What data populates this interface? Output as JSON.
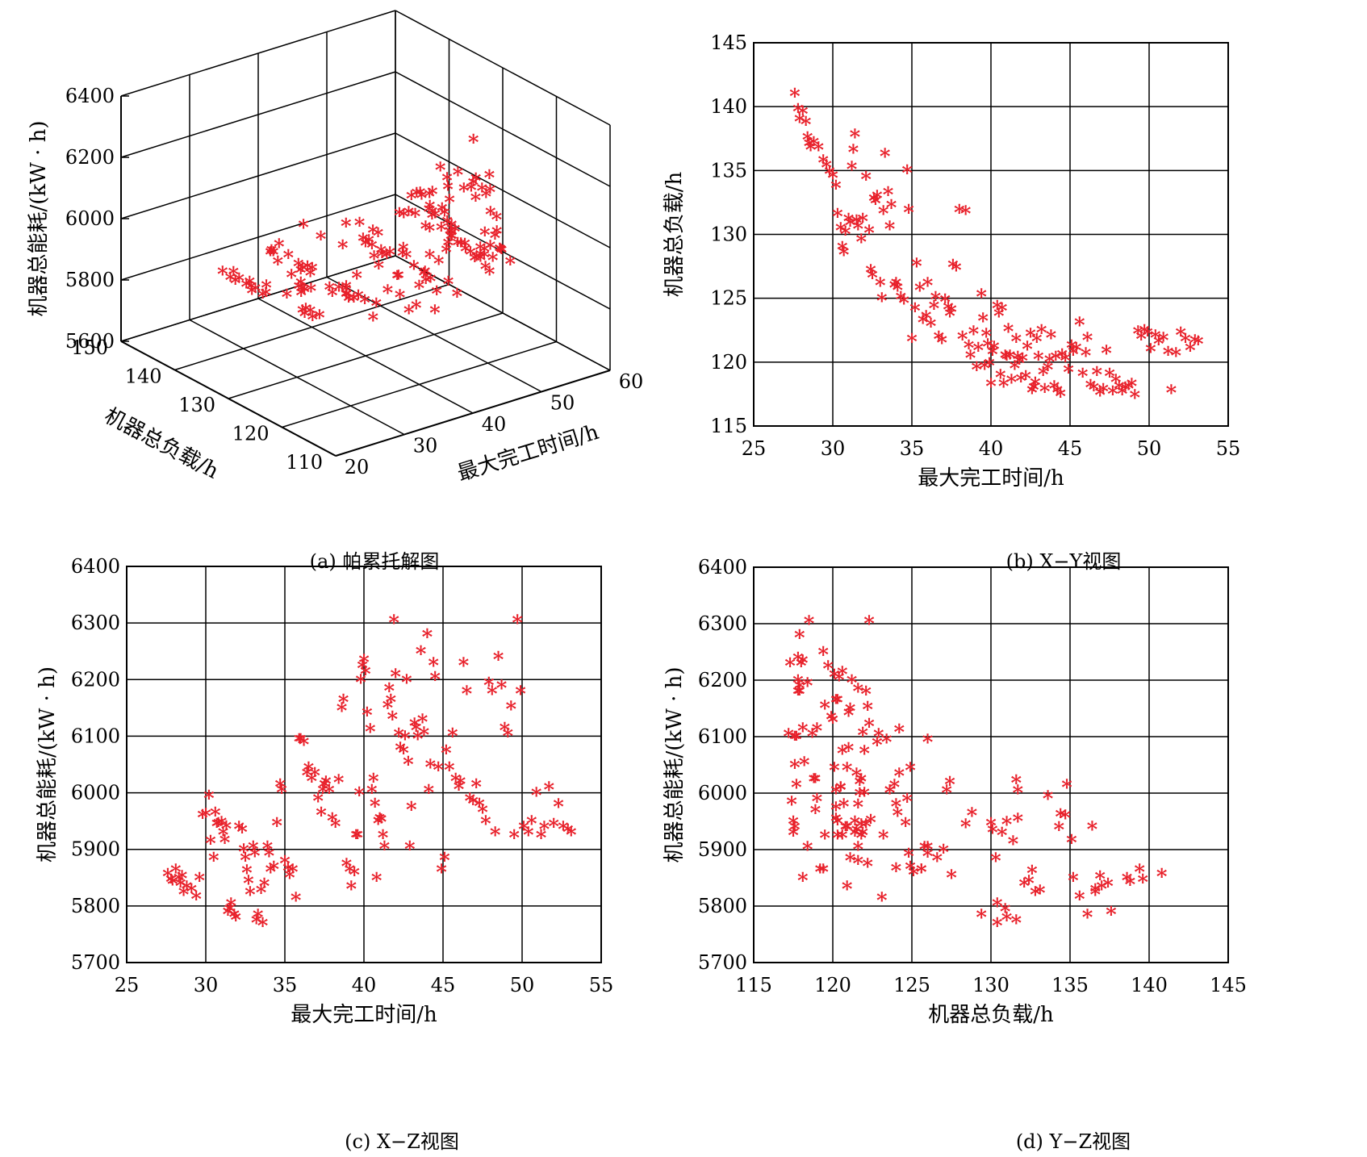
{
  "colors": {
    "marker": "#e8202a",
    "axis": "#000000",
    "grid": "#000000",
    "background": "#ffffff"
  },
  "marker_glyph": "*",
  "captions": {
    "a": "(a) 帕累托解图",
    "b": "(b) X−Y视图",
    "c": "(c) X−Z视图",
    "d": "(d) Y−Z视图"
  },
  "chart_data": [
    {
      "id": "a",
      "type": "scatter",
      "projection": "3d",
      "xlabel": "最大完工时间/h",
      "ylabel": "机器总负载/h",
      "zlabel": "机器总能耗/(kW · h)",
      "xlim": [
        20,
        60
      ],
      "ylim": [
        110,
        150
      ],
      "zlim": [
        5600,
        6400
      ],
      "xticks": [
        "20",
        "30",
        "40",
        "50",
        "60"
      ],
      "yticks": [
        "110",
        "120",
        "130",
        "140",
        "150"
      ],
      "zticks": [
        "5600",
        "5800",
        "6000",
        "6200",
        "6400"
      ],
      "grid": true,
      "points_source": "same Pareto set as panels b, c, d"
    },
    {
      "id": "b",
      "type": "scatter",
      "xlabel": "最大完工时间/h",
      "ylabel": "机器总负载/h",
      "xlim": [
        25,
        55
      ],
      "ylim": [
        115,
        145
      ],
      "xticks": [
        "25",
        "30",
        "35",
        "40",
        "45",
        "50",
        "55"
      ],
      "yticks": [
        "115",
        "120",
        "125",
        "130",
        "135",
        "140",
        "145"
      ],
      "grid": true
    },
    {
      "id": "c",
      "type": "scatter",
      "xlabel": "最大完工时间/h",
      "ylabel": "机器总能耗/(kW · h)",
      "xlim": [
        25,
        55
      ],
      "ylim": [
        5700,
        6400
      ],
      "xticks": [
        "25",
        "30",
        "35",
        "40",
        "45",
        "50",
        "55"
      ],
      "yticks": [
        "5700",
        "5800",
        "5900",
        "6000",
        "6100",
        "6200",
        "6300",
        "6400"
      ],
      "grid": true
    },
    {
      "id": "d",
      "type": "scatter",
      "xlabel": "机器总负载/h",
      "ylabel": "机器总能耗/(kW · h)",
      "xlim": [
        115,
        145
      ],
      "ylim": [
        5700,
        6400
      ],
      "xticks": [
        "115",
        "120",
        "125",
        "130",
        "135",
        "140",
        "145"
      ],
      "yticks": [
        "5700",
        "5800",
        "5900",
        "6000",
        "6100",
        "6200",
        "6300",
        "6400"
      ],
      "grid": true
    }
  ],
  "points": {
    "columns": [
      "makespan_h",
      "load_h",
      "energy_kWh"
    ],
    "rows": [
      [
        27.6,
        140.8,
        5852
      ],
      [
        27.8,
        139.6,
        5842
      ],
      [
        27.9,
        138.8,
        5838
      ],
      [
        28.1,
        139.4,
        5860
      ],
      [
        28.3,
        138.6,
        5845
      ],
      [
        28.4,
        137.4,
        5835
      ],
      [
        28.6,
        136.6,
        5820
      ],
      [
        28.8,
        137.0,
        5830
      ],
      [
        28.5,
        136.9,
        5848
      ],
      [
        29.1,
        136.6,
        5825
      ],
      [
        29.4,
        135.6,
        5812
      ],
      [
        29.6,
        135.2,
        5845
      ],
      [
        29.8,
        134.7,
        5956
      ],
      [
        30.0,
        134.4,
        5958
      ],
      [
        30.2,
        133.6,
        5990
      ],
      [
        30.3,
        131.4,
        5910
      ],
      [
        30.5,
        130.3,
        5880
      ],
      [
        30.6,
        128.8,
        5960
      ],
      [
        30.7,
        128.4,
        5940
      ],
      [
        30.8,
        130.0,
        5942
      ],
      [
        31.0,
        131.0,
        5944
      ],
      [
        31.1,
        130.7,
        5925
      ],
      [
        31.2,
        135.1,
        5912
      ],
      [
        31.3,
        136.4,
        5936
      ],
      [
        31.4,
        137.6,
        5785
      ],
      [
        31.5,
        130.9,
        5790
      ],
      [
        31.6,
        130.4,
        5800
      ],
      [
        31.8,
        129.4,
        5780
      ],
      [
        31.9,
        131.0,
        5775
      ],
      [
        32.1,
        134.3,
        5935
      ],
      [
        32.3,
        130.1,
        5930
      ],
      [
        32.4,
        127.0,
        5895
      ],
      [
        32.5,
        126.6,
        5880
      ],
      [
        32.6,
        132.6,
        5858
      ],
      [
        32.7,
        132.4,
        5840
      ],
      [
        32.8,
        132.8,
        5820
      ],
      [
        33.0,
        126.0,
        5900
      ],
      [
        33.1,
        124.8,
        5888
      ],
      [
        33.2,
        131.6,
        5770
      ],
      [
        33.3,
        136.1,
        5780
      ],
      [
        33.5,
        133.1,
        5823
      ],
      [
        33.6,
        130.4,
        5765
      ],
      [
        33.7,
        132.1,
        5835
      ],
      [
        33.9,
        125.8,
        5900
      ],
      [
        34.0,
        126.0,
        5888
      ],
      [
        34.1,
        125.6,
        5860
      ],
      [
        34.3,
        124.9,
        5865
      ],
      [
        34.5,
        124.6,
        5942
      ],
      [
        34.7,
        134.8,
        6010
      ],
      [
        34.8,
        131.7,
        6000
      ],
      [
        35.0,
        121.6,
        5875
      ],
      [
        35.2,
        124.0,
        5862
      ],
      [
        35.3,
        127.5,
        5850
      ],
      [
        35.5,
        125.6,
        5860
      ],
      [
        35.7,
        123.1,
        5810
      ],
      [
        35.9,
        123.4,
        6090
      ],
      [
        36.0,
        126.0,
        6090
      ],
      [
        36.2,
        122.8,
        6085
      ],
      [
        36.4,
        124.2,
        6030
      ],
      [
        36.5,
        124.9,
        6040
      ],
      [
        36.7,
        121.8,
        6020
      ],
      [
        36.9,
        121.5,
        6030
      ],
      [
        37.1,
        124.7,
        5985
      ],
      [
        37.3,
        124.1,
        5960
      ],
      [
        37.4,
        123.6,
        6000
      ],
      [
        37.5,
        123.9,
        6010
      ],
      [
        37.6,
        127.4,
        6015
      ],
      [
        37.8,
        127.2,
        6000
      ],
      [
        38.0,
        131.7,
        5950
      ],
      [
        38.2,
        121.8,
        5940
      ],
      [
        38.4,
        131.6,
        6018
      ],
      [
        38.6,
        121.1,
        6145
      ],
      [
        38.7,
        120.3,
        6160
      ],
      [
        38.9,
        122.2,
        5870
      ],
      [
        39.1,
        119.4,
        5860
      ],
      [
        39.2,
        120.9,
        5830
      ],
      [
        39.4,
        125.1,
        5855
      ],
      [
        39.5,
        123.2,
        5920
      ],
      [
        39.6,
        119.5,
        5920
      ],
      [
        39.7,
        122.0,
        5996
      ],
      [
        39.8,
        121.2,
        6195
      ],
      [
        39.9,
        119.7,
        6220
      ],
      [
        40.0,
        118.1,
        6230
      ],
      [
        40.1,
        120.6,
        6210
      ],
      [
        40.2,
        121.0,
        6137
      ],
      [
        40.4,
        124.2,
        6108
      ],
      [
        40.5,
        123.6,
        6000
      ],
      [
        40.6,
        118.8,
        6020
      ],
      [
        40.7,
        124.0,
        5976
      ],
      [
        40.8,
        118.1,
        5845
      ],
      [
        40.9,
        120.3,
        5945
      ],
      [
        41.0,
        120.2,
        5950
      ],
      [
        41.1,
        122.4,
        5948
      ],
      [
        41.2,
        120.3,
        5920
      ],
      [
        41.3,
        118.4,
        5900
      ],
      [
        41.5,
        119.5,
        6150
      ],
      [
        41.6,
        121.6,
        6180
      ],
      [
        41.7,
        120.2,
        6160
      ],
      [
        41.8,
        119.9,
        6130
      ],
      [
        41.9,
        118.5,
        6300
      ],
      [
        42.0,
        120.1,
        6205
      ],
      [
        42.2,
        118.7,
        6100
      ],
      [
        42.3,
        121.0,
        6075
      ],
      [
        42.5,
        122.0,
        6070
      ],
      [
        42.6,
        117.6,
        6095
      ],
      [
        42.7,
        117.8,
        6195
      ],
      [
        42.8,
        118.2,
        6050
      ],
      [
        42.9,
        121.6,
        5900
      ],
      [
        43.0,
        120.2,
        5970
      ],
      [
        43.2,
        122.3,
        6118
      ],
      [
        43.3,
        119.0,
        6110
      ],
      [
        43.4,
        117.7,
        6095
      ],
      [
        43.6,
        119.4,
        6245
      ],
      [
        43.7,
        120.0,
        6125
      ],
      [
        43.8,
        121.9,
        6102
      ],
      [
        44.0,
        117.9,
        6275
      ],
      [
        44.1,
        120.2,
        6000
      ],
      [
        44.2,
        117.6,
        6045
      ],
      [
        44.4,
        117.3,
        6225
      ],
      [
        44.5,
        120.4,
        6200
      ],
      [
        44.7,
        120.1,
        6040
      ],
      [
        44.9,
        119.2,
        5860
      ],
      [
        45.1,
        121.1,
        5880
      ],
      [
        45.2,
        120.6,
        6070
      ],
      [
        45.4,
        120.9,
        6040
      ],
      [
        45.6,
        122.9,
        6100
      ],
      [
        45.8,
        118.9,
        6020
      ],
      [
        46.0,
        120.5,
        6006
      ],
      [
        46.1,
        121.7,
        6015
      ],
      [
        46.3,
        118.0,
        6225
      ],
      [
        46.5,
        117.8,
        6175
      ],
      [
        46.7,
        119.0,
        5985
      ],
      [
        46.9,
        117.4,
        5980
      ],
      [
        47.1,
        117.7,
        6010
      ],
      [
        47.3,
        120.7,
        5976
      ],
      [
        47.5,
        118.9,
        5965
      ],
      [
        47.7,
        117.5,
        5945
      ],
      [
        47.9,
        118.4,
        6190
      ],
      [
        48.1,
        117.9,
        6175
      ],
      [
        48.3,
        117.5,
        5925
      ],
      [
        48.5,
        117.8,
        6235
      ],
      [
        48.7,
        117.9,
        6185
      ],
      [
        48.9,
        118.1,
        6110
      ],
      [
        49.1,
        117.2,
        6100
      ],
      [
        49.3,
        122.2,
        6148
      ],
      [
        49.5,
        121.8,
        5920
      ],
      [
        49.7,
        122.3,
        6300
      ],
      [
        49.9,
        122.1,
        6175
      ],
      [
        50.1,
        120.8,
        5935
      ],
      [
        50.4,
        121.9,
        5925
      ],
      [
        50.6,
        121.4,
        5945
      ],
      [
        50.9,
        121.7,
        5995
      ],
      [
        51.2,
        120.6,
        5920
      ],
      [
        51.4,
        117.6,
        5935
      ],
      [
        51.7,
        120.5,
        6005
      ],
      [
        52.0,
        122.1,
        5940
      ],
      [
        52.3,
        121.6,
        5975
      ],
      [
        52.6,
        120.9,
        5935
      ],
      [
        52.9,
        121.5,
        5930
      ],
      [
        53.1,
        121.4,
        5925
      ]
    ]
  }
}
